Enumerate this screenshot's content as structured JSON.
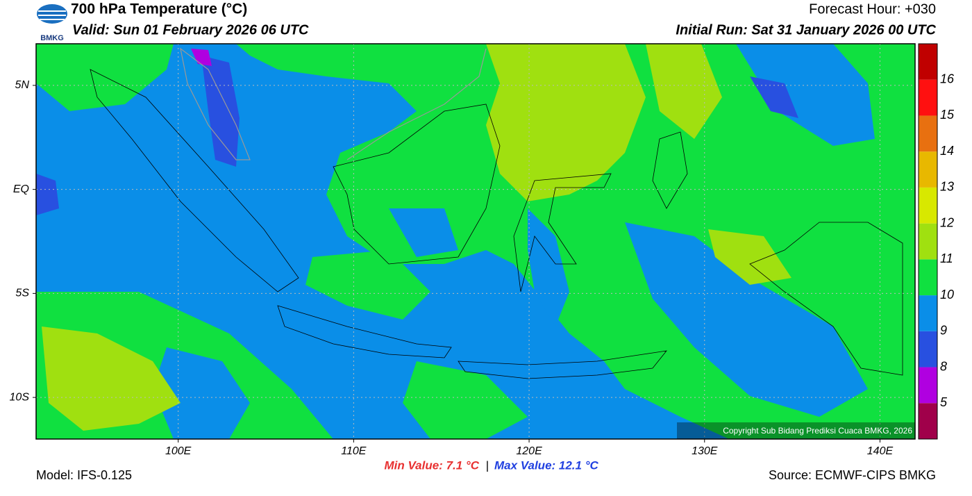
{
  "header": {
    "title": "700 hPa Temperature (°C)",
    "valid": "Valid: Sun 01 February 2026 06 UTC",
    "forecast": "Forecast Hour: +030",
    "initial": "Initial Run: Sat 31 January 2026 00 UTC",
    "logo": "BMKG"
  },
  "map": {
    "lonlim": [
      91.9,
      142.0
    ],
    "latlim": [
      -12,
      7
    ],
    "lon_ticks": [
      {
        "value": 100,
        "label": "100E"
      },
      {
        "value": 110,
        "label": "110E"
      },
      {
        "value": 120,
        "label": "120E"
      },
      {
        "value": 130,
        "label": "130E"
      },
      {
        "value": 140,
        "label": "140E"
      }
    ],
    "lat_ticks": [
      {
        "value": 5,
        "label": "5N"
      },
      {
        "value": 0,
        "label": "EQ"
      },
      {
        "value": -5,
        "label": "5S"
      },
      {
        "value": -10,
        "label": "10S"
      }
    ],
    "copyright": "Copyright Sub Bidang Prediksi Cuaca BMKG, 2026"
  },
  "colorbar": {
    "levels": [
      5,
      8,
      9,
      10,
      11,
      12,
      13,
      14,
      15,
      16
    ],
    "colors": [
      "#a0004a",
      "#b000e0",
      "#2850e0",
      "#0a8ee8",
      "#10e040",
      "#a0e010",
      "#d8e800",
      "#e8b800",
      "#e87010",
      "#ff1010",
      "#c00000"
    ]
  },
  "footer": {
    "model": "Model: IFS-0.125",
    "min": "Min Value: 7.1 °C",
    "separator": "|",
    "max": "Max Value: 12.1 °C",
    "source": "Source: ECMWF-CIPS BMKG"
  }
}
